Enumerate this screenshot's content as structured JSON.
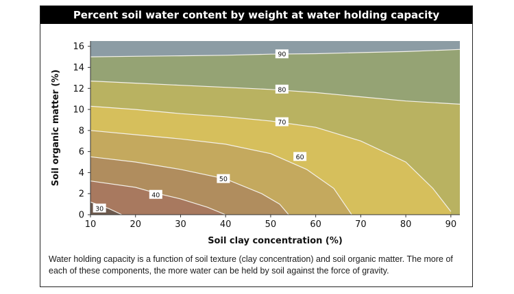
{
  "chart_data": {
    "type": "contour",
    "title": "Percent soil water content by weight at water holding capacity",
    "xlabel": "Soil clay concentration (%)",
    "ylabel": "Soil organic matter (%)",
    "xlim": [
      10,
      92
    ],
    "ylim": [
      0,
      16.5
    ],
    "x_ticks": [
      10,
      20,
      30,
      40,
      50,
      60,
      70,
      80,
      90
    ],
    "y_ticks": [
      0,
      2,
      4,
      6,
      8,
      10,
      12,
      14,
      16
    ],
    "contours": [
      {
        "level": 30,
        "label": "30",
        "points": [
          [
            10,
            1.2
          ],
          [
            14,
            0.6
          ],
          [
            17,
            0
          ]
        ],
        "label_at": [
          12,
          0.6
        ]
      },
      {
        "level": 40,
        "label": "40",
        "points": [
          [
            10,
            3.2
          ],
          [
            20,
            2.6
          ],
          [
            25,
            2.0
          ],
          [
            30,
            1.5
          ],
          [
            36,
            0.7
          ],
          [
            40,
            0
          ]
        ],
        "label_at": [
          24.5,
          1.9
        ]
      },
      {
        "level": 50,
        "label": "50",
        "points": [
          [
            10,
            5.5
          ],
          [
            20,
            5.0
          ],
          [
            30,
            4.3
          ],
          [
            40,
            3.4
          ],
          [
            48,
            2.0
          ],
          [
            52,
            1.0
          ],
          [
            54,
            0
          ]
        ],
        "label_at": [
          39.5,
          3.4
        ]
      },
      {
        "level": 60,
        "label": "60",
        "points": [
          [
            10,
            8.0
          ],
          [
            20,
            7.6
          ],
          [
            30,
            7.2
          ],
          [
            40,
            6.7
          ],
          [
            50,
            5.8
          ],
          [
            58,
            4.3
          ],
          [
            64,
            2.5
          ],
          [
            68,
            0
          ]
        ],
        "label_at": [
          56.5,
          5.5
        ]
      },
      {
        "level": 70,
        "label": "70",
        "points": [
          [
            10,
            10.3
          ],
          [
            20,
            10.0
          ],
          [
            30,
            9.6
          ],
          [
            40,
            9.3
          ],
          [
            50,
            8.9
          ],
          [
            60,
            8.3
          ],
          [
            70,
            7.0
          ],
          [
            80,
            5.0
          ],
          [
            86,
            2.5
          ],
          [
            90,
            0.3
          ]
        ],
        "label_at": [
          52.5,
          8.8
        ]
      },
      {
        "level": 80,
        "label": "80",
        "points": [
          [
            10,
            12.7
          ],
          [
            20,
            12.5
          ],
          [
            30,
            12.3
          ],
          [
            40,
            12.1
          ],
          [
            50,
            11.9
          ],
          [
            60,
            11.6
          ],
          [
            70,
            11.2
          ],
          [
            80,
            10.8
          ],
          [
            92,
            10.5
          ]
        ],
        "label_at": [
          52.5,
          11.9
        ]
      },
      {
        "level": 90,
        "label": "90",
        "points": [
          [
            10,
            15.0
          ],
          [
            20,
            15.05
          ],
          [
            30,
            15.1
          ],
          [
            40,
            15.15
          ],
          [
            50,
            15.25
          ],
          [
            60,
            15.3
          ],
          [
            70,
            15.4
          ],
          [
            80,
            15.5
          ],
          [
            92,
            15.7
          ]
        ],
        "label_at": [
          52.5,
          15.25
        ]
      }
    ],
    "band_colors": [
      "#6e5a4e",
      "#8a6a55",
      "#a8795f",
      "#b08d5e",
      "#c4a95e",
      "#d6bf5c",
      "#b9b261",
      "#95a374",
      "#8c9ca4"
    ],
    "grid": false,
    "legend": "none"
  },
  "caption": "Water holding capacity is a function of soil texture (clay concentration) and soil organic matter. The more of each of these components, the more water can be held by soil against the force of gravity."
}
